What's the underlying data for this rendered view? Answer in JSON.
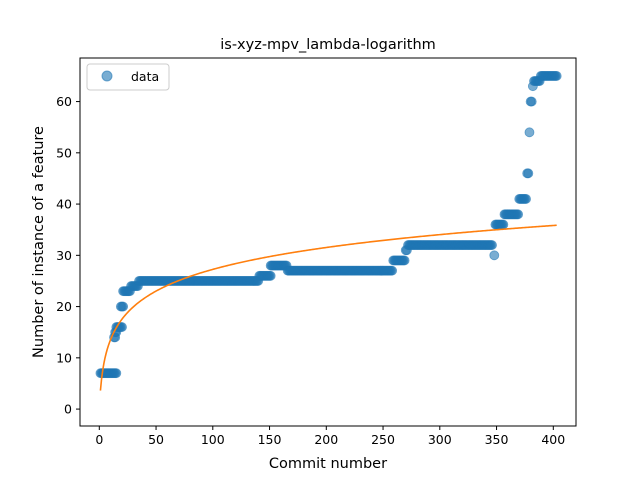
{
  "chart_data": {
    "type": "scatter",
    "title": "is-xyz-mpv_lambda-logarithm",
    "xlabel": "Commit number",
    "ylabel": "Number of instance of a feature",
    "xlim": [
      -17,
      420
    ],
    "ylim": [
      -3.3,
      68.5
    ],
    "xticks": [
      0,
      50,
      100,
      150,
      200,
      250,
      300,
      350,
      400
    ],
    "yticks": [
      0,
      10,
      20,
      30,
      40,
      50,
      60
    ],
    "grid": false,
    "legend": {
      "position": "upper left",
      "entries": [
        "data"
      ]
    },
    "series": [
      {
        "name": "data",
        "kind": "scatter",
        "color": "#1f77b4",
        "alpha": 0.6,
        "segments": [
          {
            "x0": 1,
            "x1": 15,
            "y": 7
          },
          {
            "x0": 13,
            "x1": 14,
            "y": 14
          },
          {
            "x0": 14,
            "x1": 15,
            "y": 15
          },
          {
            "x0": 15,
            "x1": 20,
            "y": 16
          },
          {
            "x0": 19,
            "x1": 21,
            "y": 20
          },
          {
            "x0": 21,
            "x1": 27,
            "y": 23
          },
          {
            "x0": 28,
            "x1": 34,
            "y": 24
          },
          {
            "x0": 35,
            "x1": 140,
            "y": 25
          },
          {
            "x0": 141,
            "x1": 151,
            "y": 26
          },
          {
            "x0": 151,
            "x1": 165,
            "y": 28
          },
          {
            "x0": 166,
            "x1": 258,
            "y": 27
          },
          {
            "x0": 259,
            "x1": 269,
            "y": 29
          },
          {
            "x0": 270,
            "x1": 271,
            "y": 31
          },
          {
            "x0": 272,
            "x1": 346,
            "y": 32
          },
          {
            "x0": 348,
            "x1": 348,
            "y": 30
          },
          {
            "x0": 349,
            "x1": 356,
            "y": 36
          },
          {
            "x0": 357,
            "x1": 369,
            "y": 38
          },
          {
            "x0": 370,
            "x1": 376,
            "y": 41
          },
          {
            "x0": 377,
            "x1": 378,
            "y": 46
          },
          {
            "x0": 379,
            "x1": 379,
            "y": 54
          },
          {
            "x0": 380,
            "x1": 381,
            "y": 60
          },
          {
            "x0": 382,
            "x1": 382,
            "y": 63
          },
          {
            "x0": 383,
            "x1": 388,
            "y": 64
          },
          {
            "x0": 389,
            "x1": 403,
            "y": 65
          }
        ]
      },
      {
        "name": "",
        "kind": "line",
        "color": "#ff7f0e",
        "model": "y = a*ln(1 + b*x)",
        "a": 6.22,
        "b": 0.79,
        "x_range": [
          1,
          403
        ]
      }
    ]
  }
}
